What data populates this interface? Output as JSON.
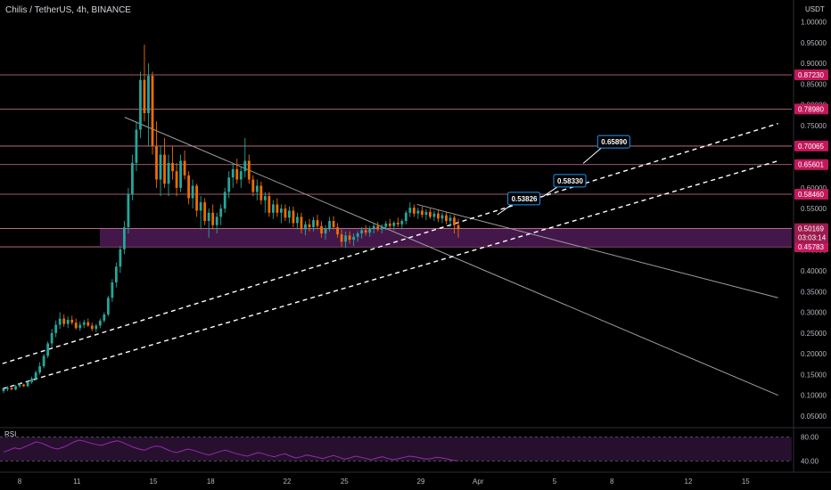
{
  "header": {
    "title": "Chilis / TetherUS, 4h, BINANCE",
    "unit": "USDT"
  },
  "colors": {
    "up": "#26a69a",
    "down": "#ef6c00",
    "level_line": "#f48fb1",
    "zone_fill": "#4a1a52",
    "callout_border": "#2196f3",
    "rsi_line": "#9c27b0",
    "rsi_band": "#2a1233"
  },
  "chart_data": {
    "type": "candlestick",
    "symbol": "Chilis / TetherUS",
    "timeframe": "4h",
    "exchange": "BINANCE",
    "y_axis": {
      "range": [
        0,
        1.0
      ],
      "ticks": [
        "0.05000",
        "0.10000",
        "0.15000",
        "0.20000",
        "0.25000",
        "0.30000",
        "0.35000",
        "0.40000",
        "0.45000",
        "0.50000",
        "0.55000",
        "0.60000",
        "0.65000",
        "0.70000",
        "0.75000",
        "0.80000",
        "0.85000",
        "0.90000",
        "0.95000",
        "1.00000"
      ]
    },
    "x_axis": {
      "ticks": [
        {
          "label": "8",
          "day": 8
        },
        {
          "label": "11",
          "day": 11
        },
        {
          "label": "15",
          "day": 15
        },
        {
          "label": "18",
          "day": 18
        },
        {
          "label": "22",
          "day": 22
        },
        {
          "label": "25",
          "day": 25
        },
        {
          "label": "29",
          "day": 29
        },
        {
          "label": "Apr",
          "day": 32
        },
        {
          "label": "5",
          "day": 36
        },
        {
          "label": "8",
          "day": 39
        },
        {
          "label": "12",
          "day": 43
        },
        {
          "label": "15",
          "day": 46
        }
      ]
    },
    "horizontal_levels": [
      {
        "value": 0.8723,
        "label": "0.87230"
      },
      {
        "value": 0.7898,
        "label": "0.78980"
      },
      {
        "value": 0.70065,
        "label": "0.70065"
      },
      {
        "value": 0.65601,
        "label": "0.65601"
      },
      {
        "value": 0.5846,
        "label": "0.58460"
      },
      {
        "value": 0.45783,
        "label": "0.45783"
      }
    ],
    "zone": {
      "top": 0.50169,
      "bottom": 0.45783
    },
    "current_price": {
      "value": 0.50169,
      "label": "0.50169",
      "countdown": "03:03:14"
    },
    "trendlines": [
      {
        "style": "solid",
        "from": {
          "day": 13.5,
          "value": 0.77
        },
        "to": {
          "day": 47.7,
          "value": 0.1
        }
      },
      {
        "style": "solid",
        "from": {
          "day": 28.8,
          "value": 0.56
        },
        "to": {
          "day": 47.7,
          "value": 0.335
        }
      },
      {
        "style": "dashed",
        "from": {
          "day": 6.3,
          "value": 0.165
        },
        "to": {
          "day": 47.7,
          "value": 0.755
        }
      },
      {
        "style": "dashed",
        "from": {
          "day": 6.3,
          "value": 0.105
        },
        "to": {
          "day": 47.7,
          "value": 0.665
        }
      }
    ],
    "callouts": [
      {
        "label": "0.53826",
        "day": 34.3,
        "value": 0.574,
        "anchor_day": 33.0,
        "anchor_value": 0.535
      },
      {
        "label": "0.58330",
        "day": 36.7,
        "value": 0.617,
        "anchor_day": 35.4,
        "anchor_value": 0.579
      },
      {
        "label": "0.65890",
        "day": 39.0,
        "value": 0.711,
        "anchor_day": 37.5,
        "anchor_value": 0.659
      }
    ],
    "candles": [
      [
        0.11,
        0.118,
        0.105,
        0.115
      ],
      [
        0.115,
        0.122,
        0.11,
        0.118
      ],
      [
        0.118,
        0.12,
        0.112,
        0.114
      ],
      [
        0.114,
        0.125,
        0.112,
        0.122
      ],
      [
        0.122,
        0.13,
        0.118,
        0.126
      ],
      [
        0.126,
        0.128,
        0.12,
        0.122
      ],
      [
        0.122,
        0.135,
        0.12,
        0.132
      ],
      [
        0.132,
        0.145,
        0.128,
        0.14
      ],
      [
        0.14,
        0.16,
        0.135,
        0.155
      ],
      [
        0.155,
        0.18,
        0.15,
        0.17
      ],
      [
        0.17,
        0.2,
        0.165,
        0.195
      ],
      [
        0.195,
        0.23,
        0.19,
        0.225
      ],
      [
        0.225,
        0.26,
        0.215,
        0.25
      ],
      [
        0.25,
        0.28,
        0.24,
        0.27
      ],
      [
        0.27,
        0.3,
        0.26,
        0.285
      ],
      [
        0.285,
        0.295,
        0.265,
        0.272
      ],
      [
        0.272,
        0.29,
        0.262,
        0.282
      ],
      [
        0.282,
        0.292,
        0.27,
        0.275
      ],
      [
        0.275,
        0.285,
        0.258,
        0.262
      ],
      [
        0.262,
        0.278,
        0.255,
        0.27
      ],
      [
        0.27,
        0.282,
        0.262,
        0.276
      ],
      [
        0.276,
        0.285,
        0.265,
        0.268
      ],
      [
        0.268,
        0.275,
        0.255,
        0.26
      ],
      [
        0.26,
        0.272,
        0.252,
        0.268
      ],
      [
        0.268,
        0.285,
        0.262,
        0.28
      ],
      [
        0.28,
        0.3,
        0.275,
        0.295
      ],
      [
        0.295,
        0.34,
        0.29,
        0.335
      ],
      [
        0.335,
        0.38,
        0.325,
        0.372
      ],
      [
        0.372,
        0.42,
        0.36,
        0.41
      ],
      [
        0.41,
        0.46,
        0.395,
        0.452
      ],
      [
        0.452,
        0.52,
        0.44,
        0.505
      ],
      [
        0.505,
        0.6,
        0.49,
        0.585
      ],
      [
        0.585,
        0.68,
        0.57,
        0.66
      ],
      [
        0.66,
        0.76,
        0.64,
        0.74
      ],
      [
        0.74,
        0.88,
        0.72,
        0.86
      ],
      [
        0.86,
        0.945,
        0.76,
        0.78
      ],
      [
        0.78,
        0.9,
        0.7,
        0.87
      ],
      [
        0.87,
        0.88,
        0.68,
        0.7
      ],
      [
        0.7,
        0.76,
        0.6,
        0.62
      ],
      [
        0.62,
        0.7,
        0.58,
        0.68
      ],
      [
        0.68,
        0.72,
        0.6,
        0.61
      ],
      [
        0.61,
        0.68,
        0.58,
        0.66
      ],
      [
        0.66,
        0.7,
        0.62,
        0.64
      ],
      [
        0.64,
        0.66,
        0.58,
        0.6
      ],
      [
        0.6,
        0.68,
        0.59,
        0.665
      ],
      [
        0.665,
        0.69,
        0.62,
        0.63
      ],
      [
        0.63,
        0.64,
        0.56,
        0.575
      ],
      [
        0.575,
        0.62,
        0.55,
        0.605
      ],
      [
        0.605,
        0.61,
        0.53,
        0.545
      ],
      [
        0.545,
        0.58,
        0.5,
        0.565
      ],
      [
        0.565,
        0.575,
        0.51,
        0.52
      ],
      [
        0.52,
        0.55,
        0.48,
        0.54
      ],
      [
        0.54,
        0.56,
        0.5,
        0.51
      ],
      [
        0.51,
        0.54,
        0.49,
        0.53
      ],
      [
        0.53,
        0.56,
        0.51,
        0.55
      ],
      [
        0.55,
        0.6,
        0.54,
        0.59
      ],
      [
        0.59,
        0.64,
        0.575,
        0.625
      ],
      [
        0.625,
        0.66,
        0.6,
        0.645
      ],
      [
        0.645,
        0.67,
        0.61,
        0.62
      ],
      [
        0.62,
        0.65,
        0.6,
        0.64
      ],
      [
        0.64,
        0.72,
        0.625,
        0.665
      ],
      [
        0.665,
        0.68,
        0.61,
        0.62
      ],
      [
        0.62,
        0.63,
        0.58,
        0.59
      ],
      [
        0.59,
        0.62,
        0.57,
        0.605
      ],
      [
        0.605,
        0.615,
        0.56,
        0.57
      ],
      [
        0.57,
        0.59,
        0.54,
        0.58
      ],
      [
        0.58,
        0.59,
        0.53,
        0.54
      ],
      [
        0.54,
        0.57,
        0.525,
        0.56
      ],
      [
        0.56,
        0.575,
        0.53,
        0.54
      ],
      [
        0.54,
        0.56,
        0.515,
        0.55
      ],
      [
        0.55,
        0.56,
        0.52,
        0.528
      ],
      [
        0.528,
        0.555,
        0.515,
        0.545
      ],
      [
        0.545,
        0.555,
        0.505,
        0.515
      ],
      [
        0.515,
        0.54,
        0.5,
        0.53
      ],
      [
        0.53,
        0.54,
        0.49,
        0.5
      ],
      [
        0.5,
        0.52,
        0.485,
        0.512
      ],
      [
        0.512,
        0.525,
        0.495,
        0.505
      ],
      [
        0.505,
        0.53,
        0.495,
        0.522
      ],
      [
        0.522,
        0.535,
        0.5,
        0.508
      ],
      [
        0.508,
        0.52,
        0.48,
        0.49
      ],
      [
        0.49,
        0.51,
        0.475,
        0.502
      ],
      [
        0.502,
        0.53,
        0.495,
        0.52
      ],
      [
        0.52,
        0.532,
        0.5,
        0.505
      ],
      [
        0.505,
        0.515,
        0.48,
        0.488
      ],
      [
        0.488,
        0.5,
        0.458,
        0.47
      ],
      [
        0.47,
        0.495,
        0.455,
        0.485
      ],
      [
        0.485,
        0.495,
        0.465,
        0.475
      ],
      [
        0.475,
        0.49,
        0.46,
        0.482
      ],
      [
        0.482,
        0.495,
        0.47,
        0.49
      ],
      [
        0.49,
        0.505,
        0.478,
        0.498
      ],
      [
        0.498,
        0.51,
        0.485,
        0.492
      ],
      [
        0.492,
        0.508,
        0.482,
        0.502
      ],
      [
        0.502,
        0.515,
        0.49,
        0.508
      ],
      [
        0.508,
        0.518,
        0.495,
        0.5
      ],
      [
        0.5,
        0.512,
        0.49,
        0.506
      ],
      [
        0.506,
        0.52,
        0.498,
        0.514
      ],
      [
        0.514,
        0.525,
        0.502,
        0.508
      ],
      [
        0.508,
        0.52,
        0.498,
        0.516
      ],
      [
        0.516,
        0.528,
        0.505,
        0.512
      ],
      [
        0.512,
        0.525,
        0.5,
        0.52
      ],
      [
        0.52,
        0.545,
        0.512,
        0.54
      ],
      [
        0.54,
        0.565,
        0.53,
        0.552
      ],
      [
        0.552,
        0.56,
        0.53,
        0.538
      ],
      [
        0.538,
        0.552,
        0.525,
        0.545
      ],
      [
        0.545,
        0.555,
        0.528,
        0.535
      ],
      [
        0.535,
        0.548,
        0.522,
        0.542
      ],
      [
        0.542,
        0.55,
        0.525,
        0.53
      ],
      [
        0.53,
        0.545,
        0.52,
        0.538
      ],
      [
        0.538,
        0.546,
        0.518,
        0.526
      ],
      [
        0.526,
        0.54,
        0.515,
        0.534
      ],
      [
        0.534,
        0.542,
        0.512,
        0.52
      ],
      [
        0.52,
        0.535,
        0.505,
        0.528
      ],
      [
        0.528,
        0.534,
        0.49,
        0.51
      ],
      [
        0.51,
        0.525,
        0.48,
        0.502
      ]
    ]
  },
  "rsi": {
    "label": "RSI",
    "upper": "80.00",
    "lower": "40.00",
    "values": [
      55,
      58,
      62,
      60,
      64,
      68,
      72,
      70,
      66,
      62,
      60,
      63,
      67,
      72,
      75,
      73,
      70,
      68,
      66,
      69,
      72,
      74,
      71,
      67,
      63,
      60,
      58,
      62,
      65,
      64,
      60,
      56,
      54,
      57,
      60,
      58,
      55,
      52,
      50,
      53,
      56,
      58,
      55,
      52,
      50,
      48,
      51,
      54,
      52,
      49,
      47,
      50,
      52,
      48,
      45,
      47,
      50,
      48,
      46,
      44,
      47,
      49,
      46,
      43,
      45,
      48,
      46,
      44,
      42,
      45,
      47,
      44,
      42,
      44,
      46,
      48,
      47,
      45,
      43,
      44,
      46,
      45,
      43,
      41,
      40
    ]
  }
}
